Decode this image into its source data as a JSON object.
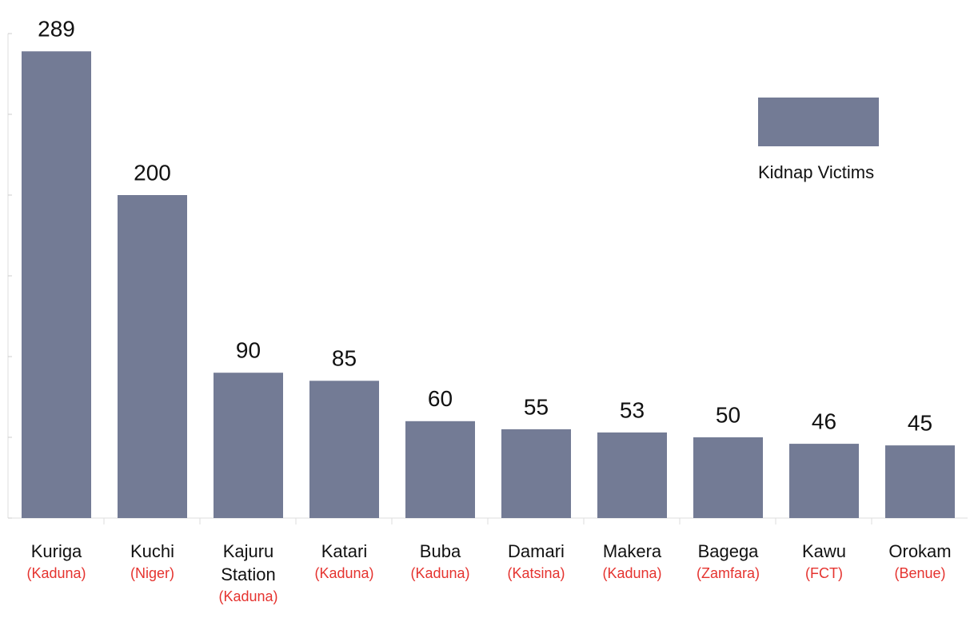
{
  "chart_data": {
    "type": "bar",
    "categories": [
      "Kuriga",
      "Kuchi",
      "Kajuru Station",
      "Katari",
      "Buba",
      "Damari",
      "Makera",
      "Bagega",
      "Kawu",
      "Orokam"
    ],
    "regions": [
      "(Kaduna)",
      "(Niger)",
      "(Kaduna)",
      "(Kaduna)",
      "(Kaduna)",
      "(Katsina)",
      "(Kaduna)",
      "(Zamfara)",
      "(FCT)",
      "(Benue)"
    ],
    "series": [
      {
        "name": "Kidnap Victims",
        "color": "#737b95",
        "values": [
          289,
          200,
          90,
          85,
          60,
          55,
          53,
          50,
          46,
          45
        ]
      }
    ],
    "region_color": "#e5332f",
    "ylim": [
      0,
      300
    ],
    "yticks": [
      0,
      50,
      100,
      150,
      200,
      250,
      300
    ],
    "legend": "upper right"
  }
}
